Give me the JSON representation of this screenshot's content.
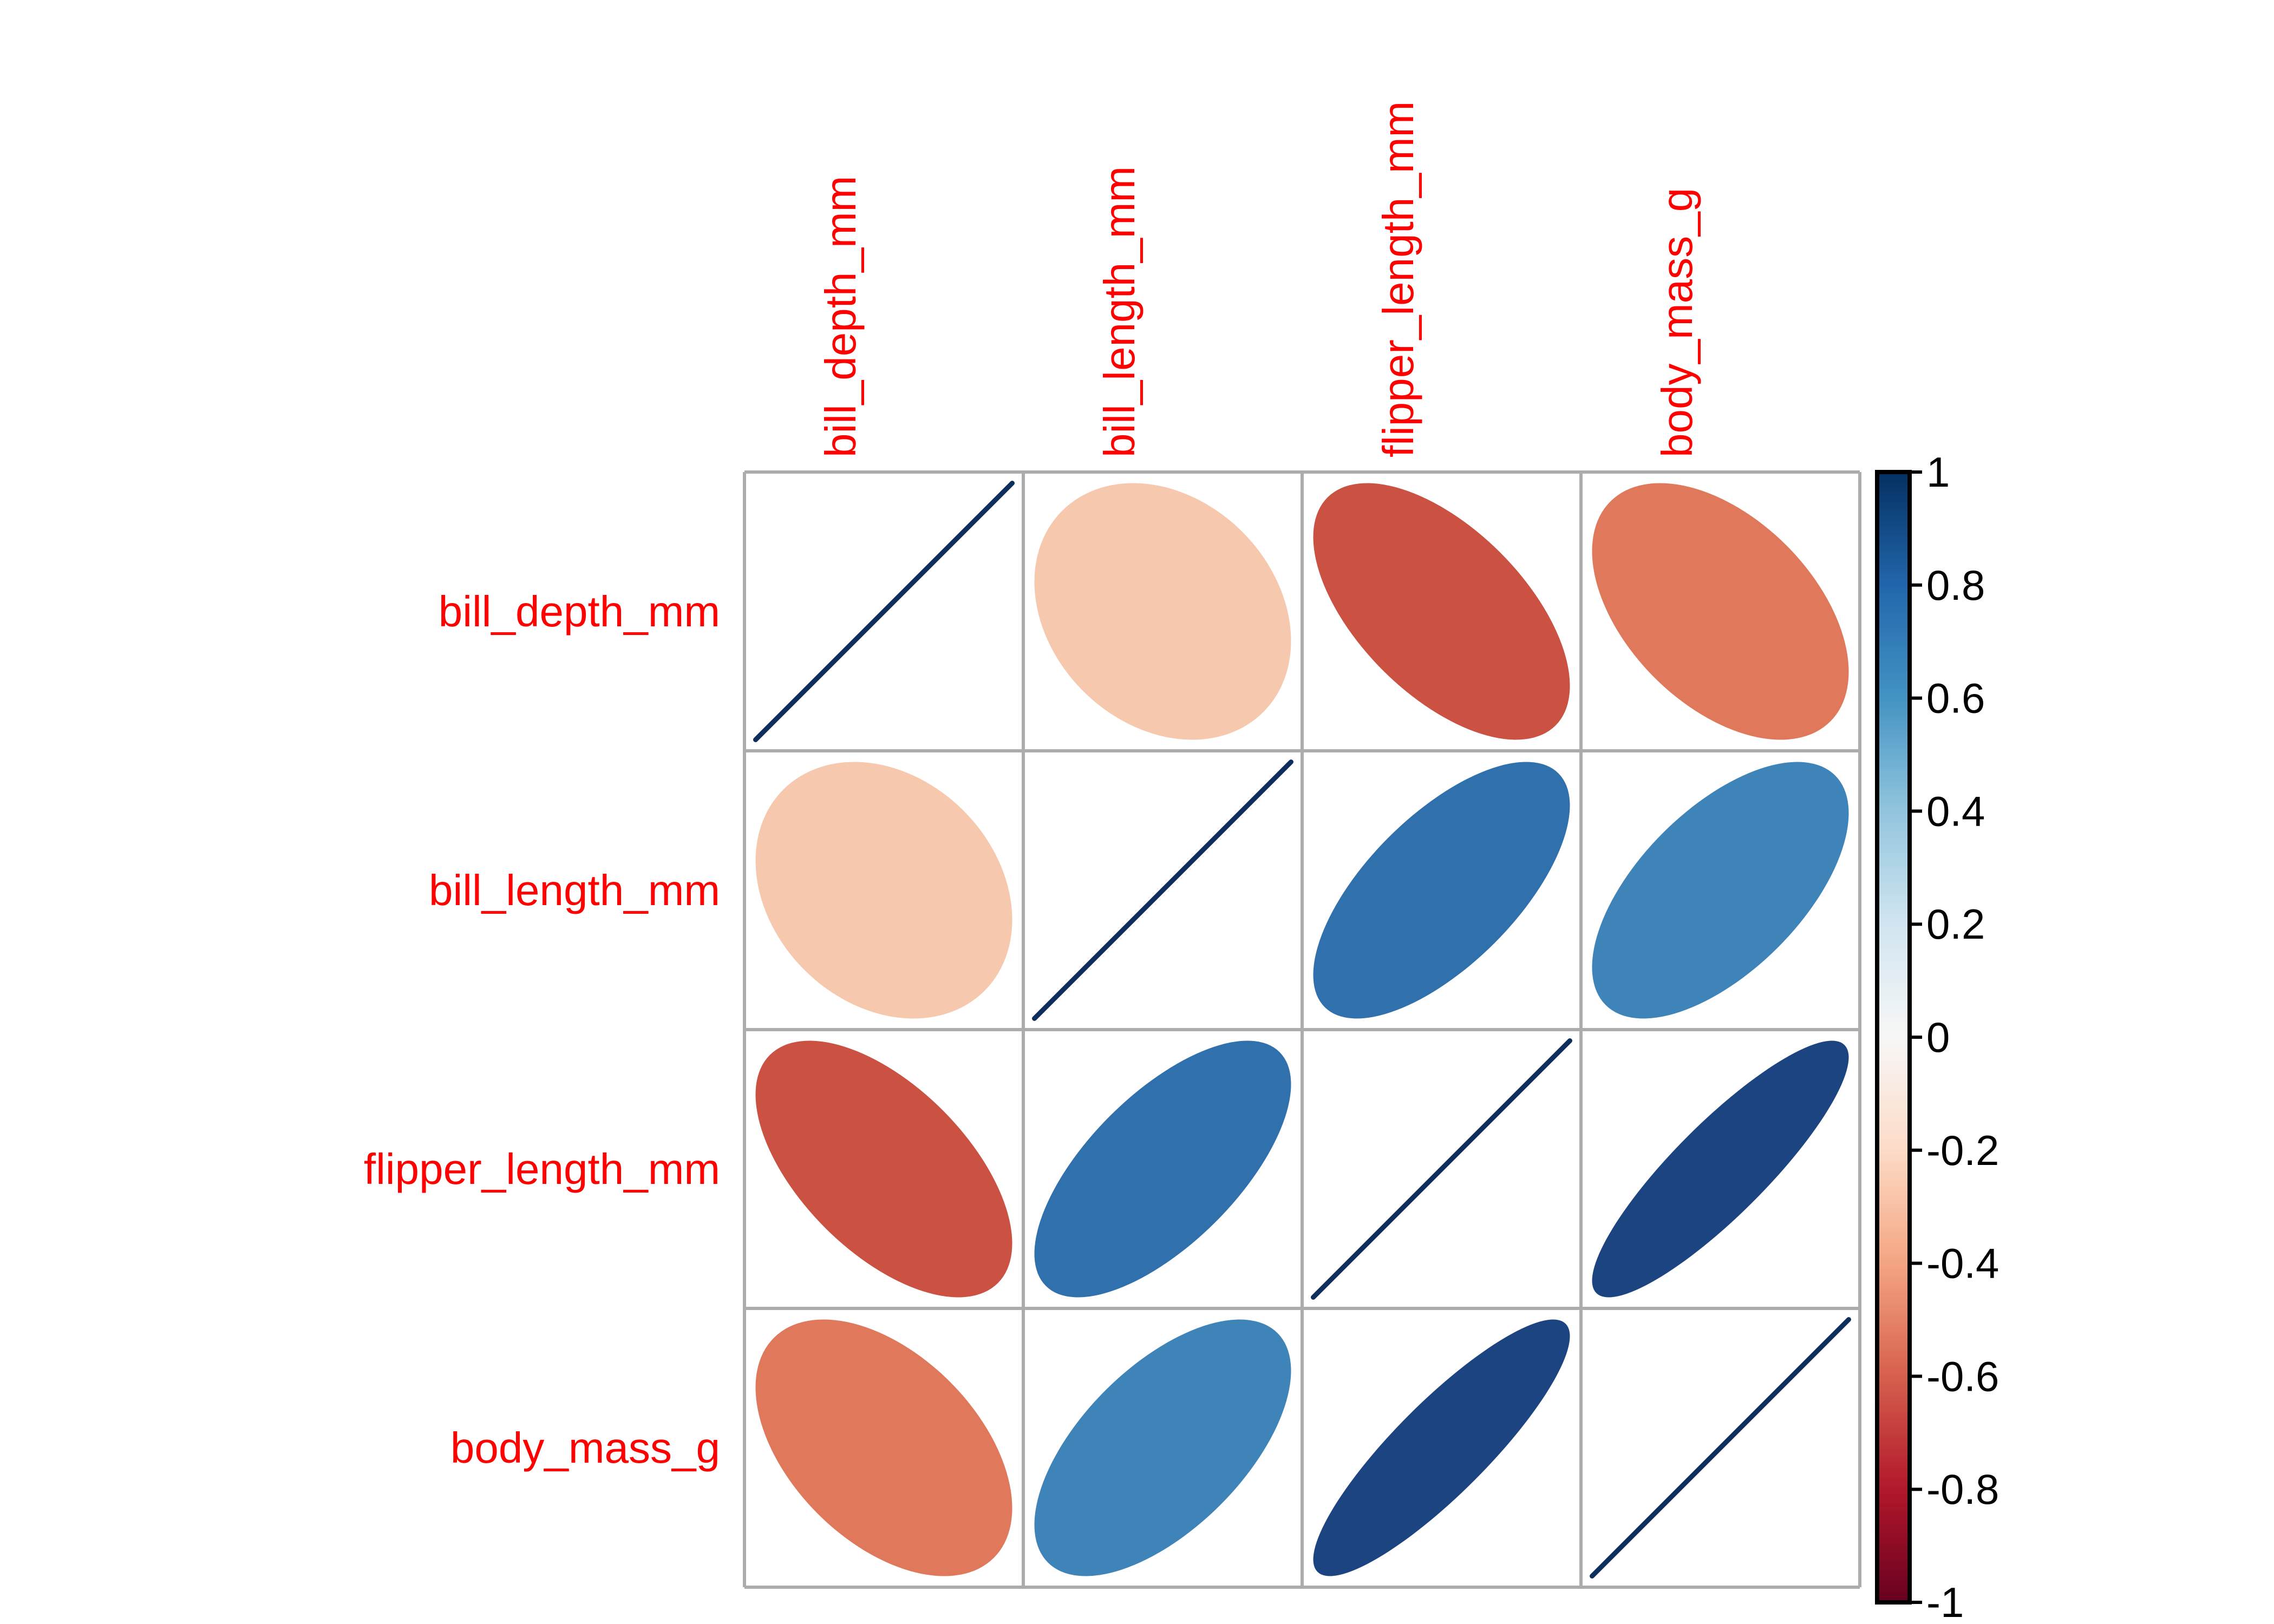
{
  "chart_data": {
    "type": "correlation-ellipse-matrix",
    "description": "Pairwise correlation matrix rendered as ellipses (corrplot style); ellipse narrowness and color encode correlation strength, diagonal r=1 drawn as a line",
    "variables": [
      "bill_depth_mm",
      "bill_length_mm",
      "flipper_length_mm",
      "body_mass_g"
    ],
    "matrix": [
      [
        1.0,
        -0.23,
        -0.58,
        -0.47
      ],
      [
        -0.23,
        1.0,
        0.66,
        0.6
      ],
      [
        -0.58,
        0.66,
        1.0,
        0.87
      ],
      [
        -0.47,
        0.6,
        0.87,
        1.0
      ]
    ],
    "cell_colors": [
      [
        null,
        "#F6C9AE",
        "#CB5143",
        "#E0785C"
      ],
      [
        "#F6C9AE",
        null,
        "#2F70AD",
        "#3E84B8"
      ],
      [
        "#CB5143",
        "#2F70AD",
        null,
        "#1C4480"
      ],
      [
        "#E0785C",
        "#3E84B8",
        "#1C4480",
        null
      ]
    ],
    "diagonal_line_color": "#0E2F5C",
    "grid_color": "#ACACAC",
    "label_color": "#FF0000",
    "tick_label_color": "#000000",
    "colorbar": {
      "position": "right",
      "range": [
        -1,
        1
      ],
      "border_color": "#000000",
      "stops": [
        {
          "offset": 0.0,
          "color": "#053061"
        },
        {
          "offset": 0.1,
          "color": "#2166AC"
        },
        {
          "offset": 0.2,
          "color": "#4393C3"
        },
        {
          "offset": 0.3,
          "color": "#92C5DE"
        },
        {
          "offset": 0.4,
          "color": "#D1E5F0"
        },
        {
          "offset": 0.5,
          "color": "#F7F7F7"
        },
        {
          "offset": 0.6,
          "color": "#FDDBC7"
        },
        {
          "offset": 0.7,
          "color": "#F4A582"
        },
        {
          "offset": 0.8,
          "color": "#D6604D"
        },
        {
          "offset": 0.9,
          "color": "#B2182B"
        },
        {
          "offset": 1.0,
          "color": "#67001F"
        }
      ],
      "ticks": [
        {
          "value": 1.0,
          "label": "1"
        },
        {
          "value": 0.8,
          "label": "0.8"
        },
        {
          "value": 0.6,
          "label": "0.6"
        },
        {
          "value": 0.4,
          "label": "0.4"
        },
        {
          "value": 0.2,
          "label": "0.2"
        },
        {
          "value": 0.0,
          "label": "0"
        },
        {
          "value": -0.2,
          "label": "-0.2"
        },
        {
          "value": -0.4,
          "label": "-0.4"
        },
        {
          "value": -0.6,
          "label": "-0.6"
        },
        {
          "value": -0.8,
          "label": "-0.8"
        },
        {
          "value": -1.0,
          "label": "-1"
        }
      ]
    }
  }
}
